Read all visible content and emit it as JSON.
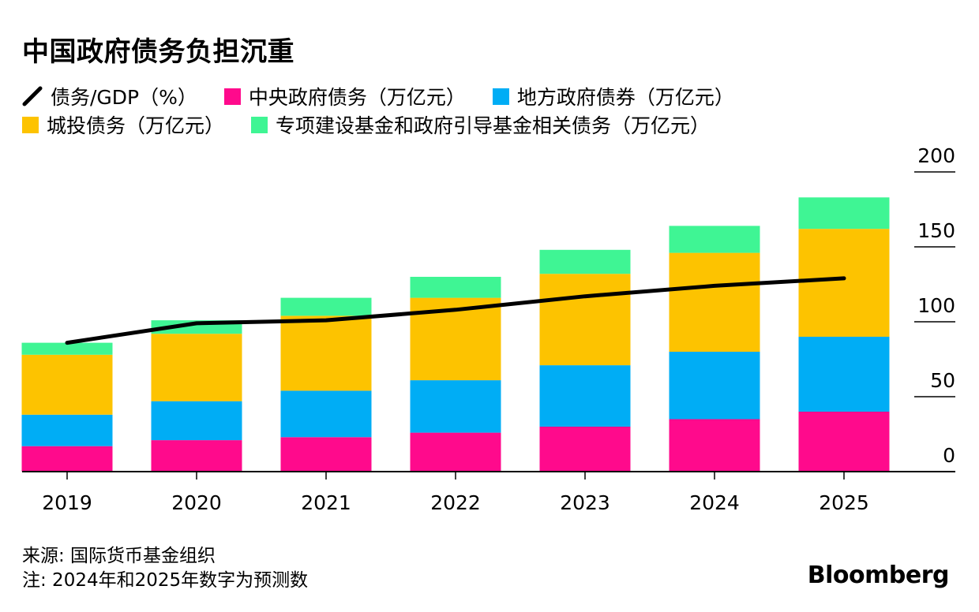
{
  "title": "中国政府债务负担沉重",
  "legend": [
    {
      "label": "债务/GDP（%）",
      "color": "#000000",
      "kind": "line"
    },
    {
      "label": "中央政府债务（万亿元）",
      "color": "#ff0a8c",
      "kind": "box"
    },
    {
      "label": "地方政府债券（万亿元）",
      "color": "#00adf5",
      "kind": "box"
    },
    {
      "label": "城投债务（万亿元）",
      "color": "#fdc300",
      "kind": "box"
    },
    {
      "label": "专项建设基金和政府引导基金相关债务（万亿元）",
      "color": "#3ff594",
      "kind": "box"
    }
  ],
  "source": "来源: 国际货币基金组织",
  "note": "注: 2024年和2025年数字为预测数",
  "brand": "Bloomberg",
  "chart_data": {
    "type": "bar",
    "stacked": true,
    "categories": [
      "2019",
      "2020",
      "2021",
      "2022",
      "2023",
      "2024",
      "2025"
    ],
    "ylim": [
      0,
      200
    ],
    "yticks": [
      0,
      50,
      100,
      150,
      200
    ],
    "ytick_side": "right",
    "series": [
      {
        "name": "中央政府债务（万亿元）",
        "color": "#ff0a8c",
        "values": [
          17,
          21,
          23,
          26,
          30,
          35,
          40
        ]
      },
      {
        "name": "地方政府债券（万亿元）",
        "color": "#00adf5",
        "values": [
          21,
          26,
          31,
          35,
          41,
          45,
          50
        ]
      },
      {
        "name": "城投债务（万亿元）",
        "color": "#fdc300",
        "values": [
          40,
          45,
          50,
          55,
          61,
          66,
          72
        ]
      },
      {
        "name": "专项建设基金和政府引导基金相关债务（万亿元）",
        "color": "#3ff594",
        "values": [
          8,
          9,
          12,
          14,
          16,
          18,
          21
        ]
      }
    ],
    "line": {
      "name": "债务/GDP（%）",
      "color": "#000000",
      "values": [
        86,
        99,
        101,
        108,
        117,
        124,
        129
      ]
    }
  }
}
